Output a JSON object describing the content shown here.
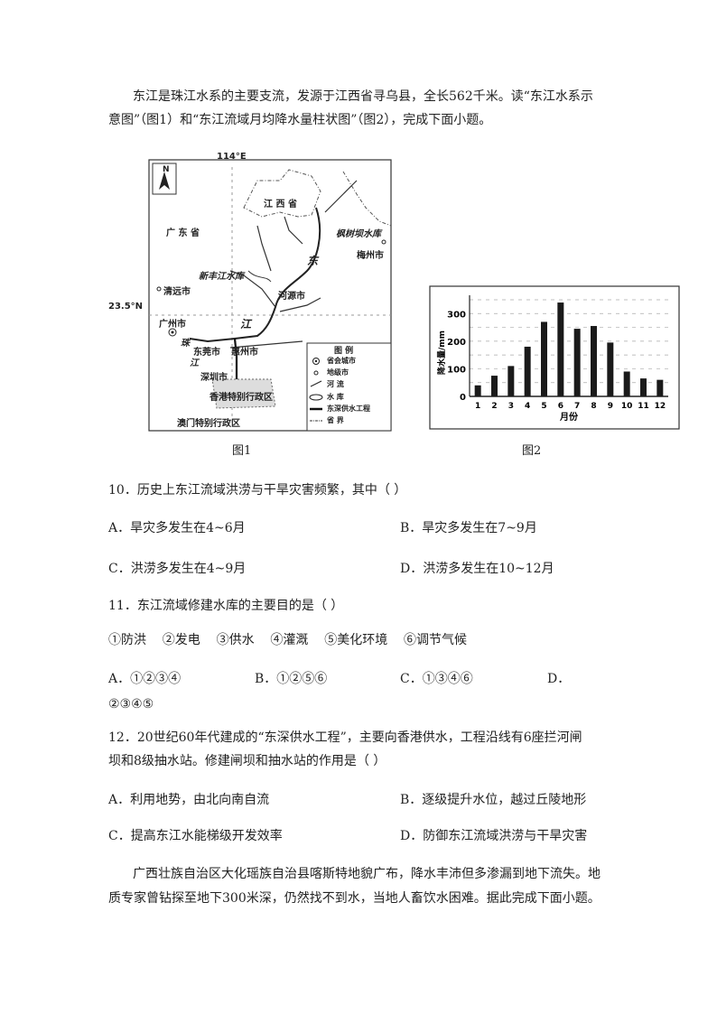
{
  "intro": {
    "line1": "东江是珠江水系的主要支流，发源于江西省寻乌县，全长562千米。读“东江水系示",
    "line2": "意图”（图1）和“东江流域月均降水量柱状图”（图2），完成下面小题。"
  },
  "figure1": {
    "caption": "图1",
    "longitude": "114°E",
    "latitude": "23.5°N",
    "north": "N",
    "labels": {
      "jiangxi": "江 西 省",
      "guangdong": "广 东 省",
      "fengshuba": "枫树坝水库",
      "meizhou": "梅州市",
      "xinfengjiang": "新丰江水库",
      "qingyuan": "清远市",
      "heyuan": "河源市",
      "guangzhou": "广州市",
      "dong": "东",
      "jiang": "江",
      "zhu": "珠",
      "jiang2": "江",
      "dongguan": "东莞市",
      "huizhou": "惠州市",
      "shenzhen": "深圳市",
      "hongkong": "香港特别行政区",
      "macau": "澳门特别行政区"
    },
    "legend": {
      "title": "图  例",
      "items": [
        "省会城市",
        "地级市",
        "河 流",
        "水 库",
        "东深供水工程",
        "省 界"
      ]
    }
  },
  "figure2": {
    "caption": "图2"
  },
  "chart_data": {
    "type": "bar",
    "categories": [
      "1",
      "2",
      "3",
      "4",
      "5",
      "6",
      "7",
      "8",
      "9",
      "10",
      "11",
      "12"
    ],
    "values": [
      40,
      75,
      110,
      180,
      270,
      340,
      245,
      255,
      195,
      90,
      65,
      60
    ],
    "xlabel": "月份",
    "ylabel": "降水量/mm",
    "ylim": [
      0,
      350
    ],
    "yticks": [
      "0",
      "100",
      "200",
      "300"
    ],
    "grid": true
  },
  "questions": [
    {
      "stem": "10．历史上东江流域洪涝与干旱灾害频繁，其中（    ）",
      "options": [
        "A．旱灾多发生在4~6月",
        "B．旱灾多发生在7~9月",
        "C．洪涝多发生在4~9月",
        "D．洪涝多发生在10~12月"
      ]
    },
    {
      "stem": "11．东江流域修建水库的主要目的是（    ）",
      "items": "①防洪    ②发电    ③供水    ④灌溉    ⑤美化环境    ⑥调节气候",
      "options": [
        "A．①②③④",
        "B．①②⑤⑥",
        "C．①③④⑥",
        "D．",
        "②③④⑤"
      ]
    },
    {
      "stem1": "12．20世纪60年代建成的“东深供水工程”，主要向香港供水，工程沿线有6座拦河闸",
      "stem2": "坝和8级抽水站。修建闸坝和抽水站的作用是（    ）",
      "options": [
        "A．利用地势，由北向南自流",
        "B．逐级提升水位，越过丘陵地形",
        "C．提高东江水能梯级开发效率",
        "D．防御东江流域洪涝与干旱灾害"
      ]
    }
  ],
  "passage": {
    "line1": "广西壮族自治区大化瑶族自治县喀斯特地貌广布，降水丰沛但多渗漏到地下流失。地",
    "line2": "质专家曾钻探至地下300米深，仍然找不到水，当地人畜饮水困难。据此完成下面小题。"
  }
}
